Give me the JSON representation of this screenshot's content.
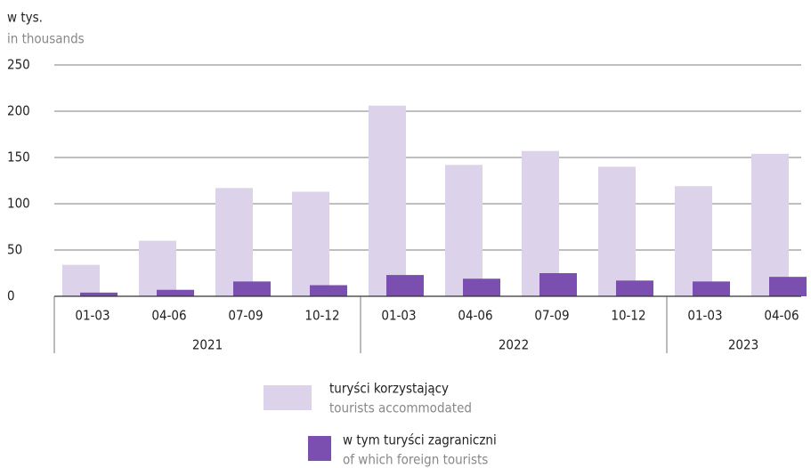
{
  "chart_data": {
    "type": "bar",
    "y_label": "w tys.",
    "y_label_en": "in thousands",
    "categories": [
      "01-03",
      "04-06",
      "07-09",
      "10-12",
      "01-03",
      "04-06",
      "07-09",
      "10-12",
      "01-03",
      "04-06"
    ],
    "groups": [
      {
        "label": "2021",
        "count": 4
      },
      {
        "label": "2022",
        "count": 4
      },
      {
        "label": "2023",
        "count": 2
      }
    ],
    "series": [
      {
        "name": "turyści korzystający",
        "name_en": "tourists accommodated",
        "color": "#dcd3ea",
        "values": [
          34,
          60,
          117,
          113,
          206,
          142,
          157,
          140,
          119,
          154
        ]
      },
      {
        "name": "w tym turyści zagraniczni",
        "name_en": "of which foreign tourists",
        "color": "#7b4fb0",
        "values": [
          4,
          7,
          16,
          12,
          23,
          19,
          25,
          17,
          16,
          21
        ]
      }
    ],
    "ylim": [
      0,
      250
    ],
    "yticks": [
      0,
      50,
      100,
      150,
      200,
      250
    ],
    "grid": true
  }
}
